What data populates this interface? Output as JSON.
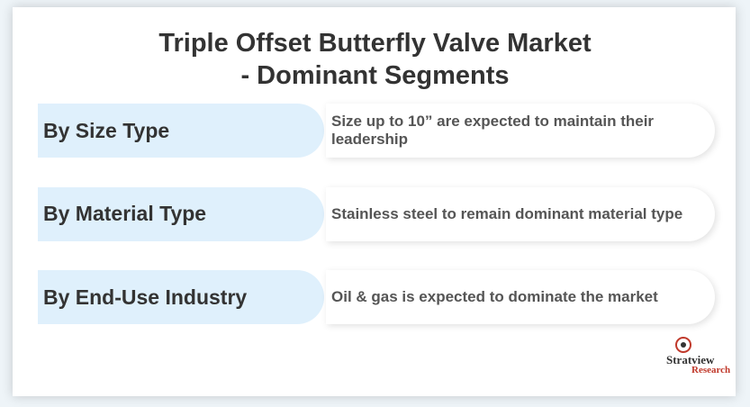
{
  "header": {
    "title": [
      "Triple Offset Butterfly Valve Market",
      "- Dominant Segments"
    ]
  },
  "segments": [
    {
      "label": "By Size Type",
      "text": "Size up to 10” are expected to maintain their leadership"
    },
    {
      "label": "By Material Type",
      "text": "Stainless steel to remain dominant material type"
    },
    {
      "label": "By End-Use Industry",
      "text": "Oil & gas is expected to dominate the market"
    }
  ],
  "logo": {
    "name": "Stratview",
    "sub": "Research"
  }
}
